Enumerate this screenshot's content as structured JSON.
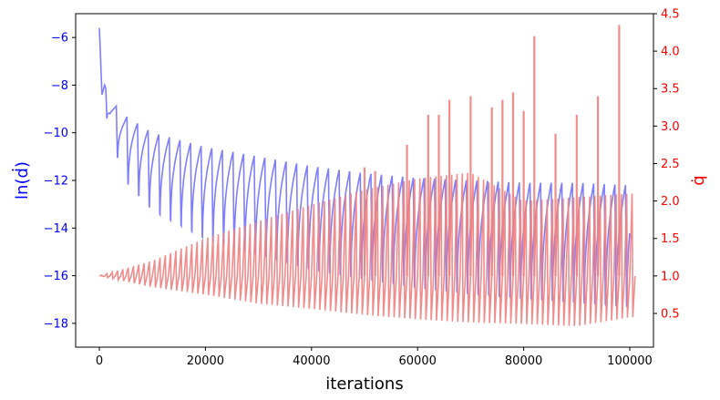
{
  "chart_data": {
    "type": "line",
    "title": "",
    "xlabel": "iterations",
    "ylabel_left": "ln(ḋ)",
    "ylabel_right": "q̇",
    "xlim": [
      0,
      100000
    ],
    "ylim_left": [
      -19.0,
      -5.0
    ],
    "ylim_right": [
      0.05,
      4.5
    ],
    "x_ticks": [
      0,
      20000,
      40000,
      60000,
      80000,
      100000
    ],
    "y_ticks_left": [
      -6,
      -8,
      -10,
      -12,
      -14,
      -16,
      -18
    ],
    "y_ticks_right": [
      0.5,
      1.0,
      1.5,
      2.0,
      2.5,
      3.0,
      3.5,
      4.0,
      4.5
    ],
    "grid": false,
    "legend": "none",
    "colors": {
      "left_axis": "#0000ff",
      "right_axis": "#ff0000",
      "series_blue": "#7777ff",
      "series_red": "#f08080"
    },
    "series": [
      {
        "axis": "left",
        "color": "#7777ff",
        "kind": "oscillating decay",
        "x": [
          0,
          500,
          1000,
          2000,
          5000,
          10000,
          20000,
          30000,
          40000,
          50000,
          60000,
          70000,
          80000,
          90000,
          100000
        ],
        "upper_envelope": [
          -5.6,
          -8.4,
          -8.0,
          -8.6,
          -9.3,
          -10.0,
          -10.6,
          -11.0,
          -11.4,
          -11.7,
          -11.9,
          -12.0,
          -12.1,
          -12.1,
          -12.2
        ],
        "lower_envelope": [
          -5.6,
          -8.4,
          -9.0,
          -10.4,
          -12.6,
          -13.9,
          -15.2,
          -15.9,
          -16.6,
          -17.0,
          -17.4,
          -17.7,
          -17.9,
          -18.1,
          -18.3
        ],
        "cycle_period": 2000
      },
      {
        "axis": "right",
        "color": "#f08080",
        "kind": "oscillation about 1.0",
        "x": [
          0,
          10000,
          20000,
          30000,
          40000,
          50000,
          60000,
          70000,
          80000,
          90000,
          100000
        ],
        "baseline": [
          1.0,
          1.0,
          1.0,
          1.0,
          1.0,
          1.0,
          1.0,
          1.0,
          1.0,
          1.0,
          1.0
        ],
        "upper_envelope": [
          1.0,
          1.2,
          1.5,
          1.73,
          1.95,
          2.15,
          2.3,
          2.38,
          2.0,
          2.05,
          2.1
        ],
        "lower_envelope": [
          1.0,
          0.85,
          0.75,
          0.63,
          0.56,
          0.48,
          0.42,
          0.38,
          0.36,
          0.33,
          0.45
        ],
        "spikes": [
          {
            "x": 50000,
            "y": 2.45
          },
          {
            "x": 52000,
            "y": 2.4
          },
          {
            "x": 58000,
            "y": 2.75
          },
          {
            "x": 62000,
            "y": 3.15
          },
          {
            "x": 64000,
            "y": 3.15
          },
          {
            "x": 66000,
            "y": 3.35
          },
          {
            "x": 70000,
            "y": 3.4
          },
          {
            "x": 74000,
            "y": 3.25
          },
          {
            "x": 76000,
            "y": 3.35
          },
          {
            "x": 78000,
            "y": 3.45
          },
          {
            "x": 80000,
            "y": 3.2
          },
          {
            "x": 82000,
            "y": 4.2
          },
          {
            "x": 86000,
            "y": 2.9
          },
          {
            "x": 90000,
            "y": 3.15
          },
          {
            "x": 94000,
            "y": 3.4
          },
          {
            "x": 98000,
            "y": 4.35
          }
        ]
      }
    ]
  }
}
